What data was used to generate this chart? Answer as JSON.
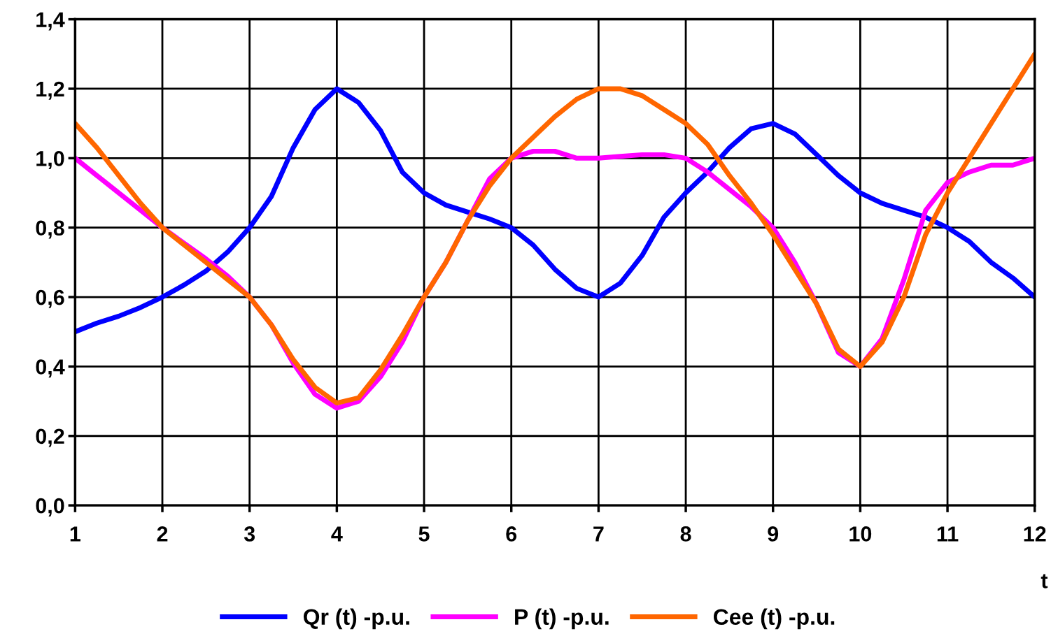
{
  "chart_data": {
    "type": "line",
    "xlabel": "t",
    "x": [
      1,
      1.25,
      1.5,
      1.75,
      2,
      2.25,
      2.5,
      2.75,
      3,
      3.25,
      3.5,
      3.75,
      4,
      4.25,
      4.5,
      4.75,
      5,
      5.25,
      5.5,
      5.75,
      6,
      6.25,
      6.5,
      6.75,
      7,
      7.25,
      7.5,
      7.75,
      8,
      8.25,
      8.5,
      8.75,
      9,
      9.25,
      9.5,
      9.75,
      10,
      10.25,
      10.5,
      10.75,
      11,
      11.25,
      11.5,
      11.75,
      12
    ],
    "series": [
      {
        "name": "Qr (t) -p.u.",
        "color": "#0000ff",
        "values": [
          0.5,
          0.525,
          0.545,
          0.57,
          0.6,
          0.635,
          0.675,
          0.73,
          0.8,
          0.89,
          1.03,
          1.14,
          1.2,
          1.16,
          1.08,
          0.96,
          0.9,
          0.865,
          0.845,
          0.825,
          0.8,
          0.75,
          0.68,
          0.625,
          0.6,
          0.64,
          0.72,
          0.83,
          0.9,
          0.96,
          1.03,
          1.085,
          1.1,
          1.07,
          1.01,
          0.95,
          0.9,
          0.87,
          0.85,
          0.83,
          0.8,
          0.76,
          0.7,
          0.655,
          0.6
        ]
      },
      {
        "name": "P (t) -p.u.",
        "color": "#ff00ff",
        "values": [
          1.0,
          0.95,
          0.9,
          0.85,
          0.8,
          0.755,
          0.71,
          0.66,
          0.6,
          0.52,
          0.41,
          0.32,
          0.28,
          0.3,
          0.37,
          0.47,
          0.6,
          0.7,
          0.82,
          0.94,
          1.0,
          1.02,
          1.02,
          1.0,
          1.0,
          1.005,
          1.01,
          1.01,
          1.0,
          0.96,
          0.91,
          0.86,
          0.8,
          0.7,
          0.58,
          0.44,
          0.4,
          0.48,
          0.65,
          0.85,
          0.93,
          0.96,
          0.98,
          0.98,
          1.0
        ]
      },
      {
        "name": "Cee (t) -p.u.",
        "color": "#ff6600",
        "values": [
          1.1,
          1.03,
          0.95,
          0.87,
          0.8,
          0.75,
          0.7,
          0.65,
          0.6,
          0.52,
          0.42,
          0.34,
          0.295,
          0.31,
          0.39,
          0.49,
          0.6,
          0.7,
          0.82,
          0.92,
          1.0,
          1.06,
          1.12,
          1.17,
          1.2,
          1.2,
          1.18,
          1.14,
          1.1,
          1.04,
          0.95,
          0.87,
          0.78,
          0.68,
          0.58,
          0.45,
          0.4,
          0.47,
          0.6,
          0.78,
          0.9,
          1.0,
          1.1,
          1.2,
          1.3
        ]
      }
    ],
    "xlim": [
      1,
      12
    ],
    "xticks": [
      1,
      2,
      3,
      4,
      5,
      6,
      7,
      8,
      9,
      10,
      11,
      12
    ],
    "ylim": [
      0,
      1.4
    ],
    "yticks": [
      {
        "value": 0,
        "label": "0,0"
      },
      {
        "value": 0.2,
        "label": "0,2"
      },
      {
        "value": 0.4,
        "label": "0,4"
      },
      {
        "value": 0.6,
        "label": "0,6"
      },
      {
        "value": 0.8,
        "label": "0,8"
      },
      {
        "value": 1.0,
        "label": "1,0"
      },
      {
        "value": 1.2,
        "label": "1,2"
      },
      {
        "value": 1.4,
        "label": "1,4"
      }
    ],
    "grid": true,
    "legend": "bottom",
    "marker": "none",
    "line_style": "solid"
  }
}
